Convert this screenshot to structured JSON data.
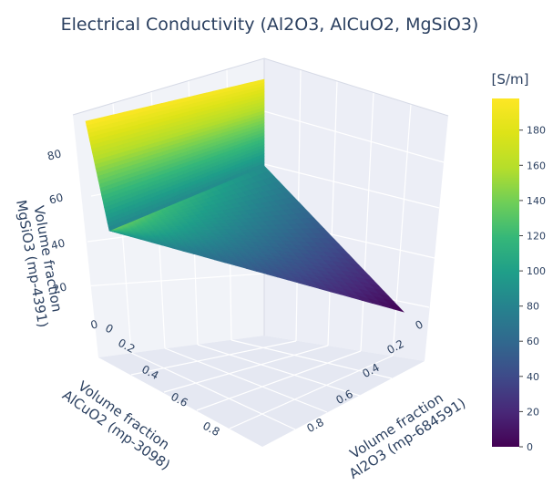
{
  "chart_data": {
    "type": "surface",
    "title": "Electrical Conductivity (Al2O3, AlCuO2, MgSiO3)",
    "x_axis": {
      "label": "Volume fraction\nAl2O3 (mp-684591)",
      "ticks": [
        "0",
        "0.2",
        "0.4",
        "0.6",
        "0.8"
      ],
      "range": [
        0,
        1
      ]
    },
    "y_axis": {
      "label": "Volume fraction\nAlCuO2 (mp-3098)",
      "ticks": [
        "0",
        "0.2",
        "0.4",
        "0.6",
        "0.8"
      ],
      "range": [
        0,
        1
      ]
    },
    "z_axis": {
      "label": "Volume fraction\nMgSiO3 (mp-4391)",
      "ticks": [
        "0",
        "20",
        "40",
        "60",
        "80"
      ],
      "range": [
        0,
        100
      ]
    },
    "colorbar": {
      "title": "[S/m]",
      "ticks": [
        "0",
        "20",
        "40",
        "60",
        "80",
        "100",
        "120",
        "140",
        "160",
        "180"
      ],
      "range": [
        0,
        198
      ],
      "colorscale": "viridis"
    },
    "corner_values": [
      {
        "al2o3": 0,
        "alcuo2": 0,
        "mgsio3": 100,
        "conductivity": 198
      },
      {
        "al2o3": 0,
        "alcuo2": 1,
        "mgsio3": 0,
        "conductivity": 183
      },
      {
        "al2o3": 0,
        "alcuo2": 0,
        "mgsio3": 0,
        "conductivity": 86
      },
      {
        "al2o3": 1,
        "alcuo2": 0,
        "mgsio3": 0,
        "conductivity": 0
      }
    ],
    "grid": true
  }
}
